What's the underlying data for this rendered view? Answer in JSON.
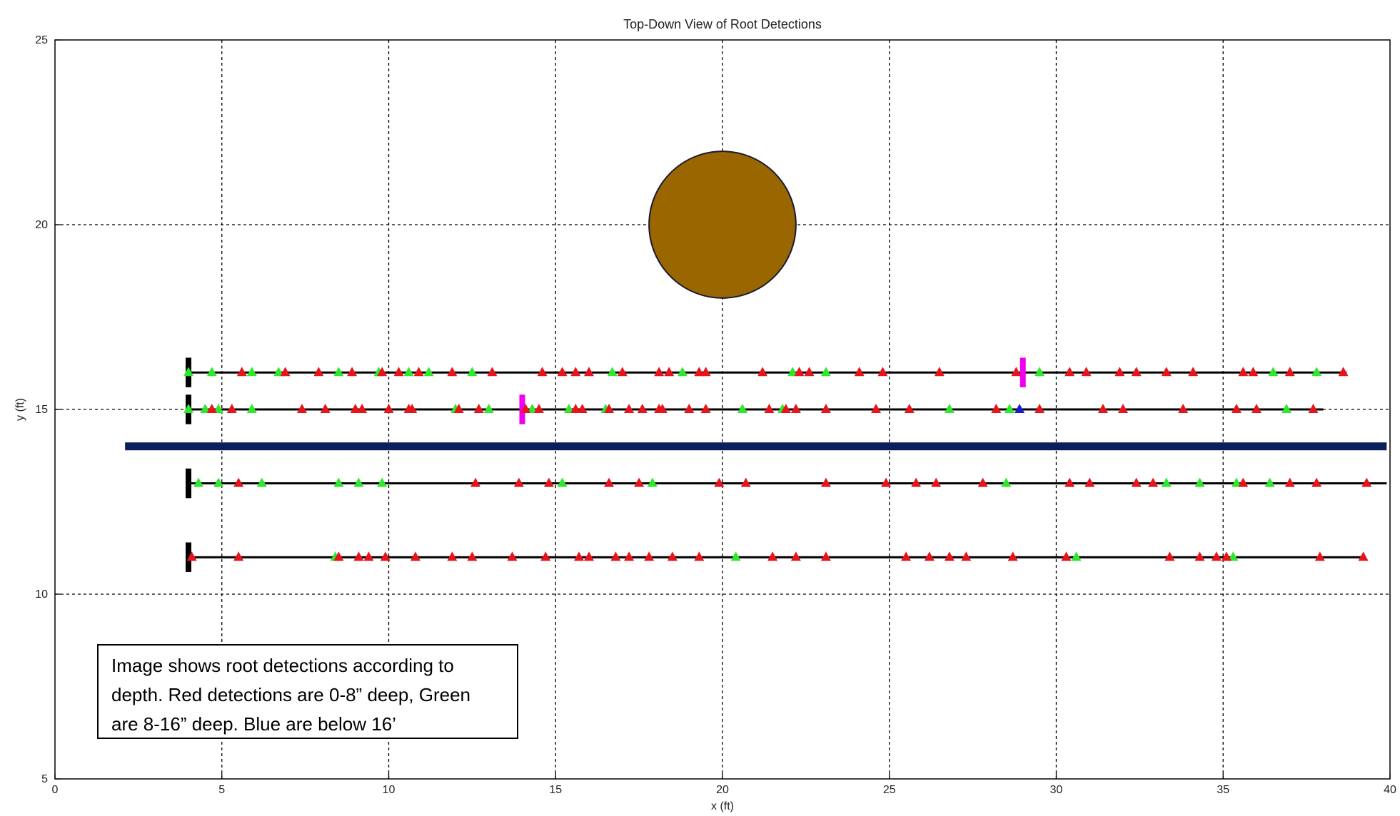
{
  "chart_data": {
    "type": "scatter",
    "title": "Top-Down View of Root Detections",
    "xlabel": "x (ft)",
    "ylabel": "y (ft)",
    "xlim": [
      0,
      40
    ],
    "ylim": [
      5,
      25
    ],
    "xticks": [
      0,
      5,
      10,
      15,
      20,
      25,
      30,
      35,
      40
    ],
    "yticks": [
      5,
      10,
      15,
      20,
      25
    ],
    "grid": true,
    "colors": {
      "red": "#e8141c",
      "green": "#2ee82e",
      "blue": "#1a1acc",
      "line": "#000000",
      "bar": "#0a1f5c",
      "marker_black": "#000000",
      "marker_magenta": "#ee00ee",
      "tree_fill": "#996600",
      "tree_edge": "#1a1a33"
    },
    "tree": {
      "cx": 20,
      "cy": 20,
      "r": 2.2
    },
    "barrier": {
      "x": [
        2.1,
        39.9
      ],
      "y": 14.0
    },
    "lines": [
      {
        "y": 16.0,
        "x": [
          4.0,
          38.7
        ],
        "red": [
          5.6,
          6.9,
          7.9,
          8.9,
          9.8,
          10.3,
          10.9,
          11.9,
          13.1,
          14.6,
          15.2,
          15.6,
          16.0,
          17.0,
          18.1,
          18.4,
          19.3,
          19.5,
          21.2,
          22.3,
          22.6,
          24.1,
          24.8,
          26.5,
          28.8,
          30.4,
          30.9,
          31.9,
          32.4,
          33.3,
          34.1,
          35.6,
          35.9,
          37.0,
          38.6
        ],
        "green": [
          4.0,
          4.7,
          5.9,
          6.7,
          8.5,
          9.7,
          10.6,
          11.2,
          12.5,
          16.7,
          18.8,
          22.1,
          23.1,
          29.5,
          36.5,
          37.8
        ],
        "blue": []
      },
      {
        "y": 15.0,
        "x": [
          4.0,
          38.0
        ],
        "red": [
          4.7,
          5.3,
          7.4,
          8.1,
          9.0,
          9.2,
          10.0,
          10.6,
          10.7,
          12.1,
          12.7,
          14.1,
          14.5,
          15.6,
          15.8,
          16.6,
          17.2,
          17.6,
          18.1,
          18.2,
          19.0,
          19.5,
          21.4,
          21.9,
          22.2,
          23.1,
          24.6,
          25.6,
          28.2,
          29.5,
          31.4,
          32.0,
          33.8,
          35.4,
          36.0,
          37.7
        ],
        "green": [
          4.0,
          4.5,
          4.9,
          5.9,
          12.0,
          13.0,
          14.3,
          15.4,
          16.5,
          20.6,
          21.8,
          26.8,
          28.6,
          36.9
        ],
        "blue": [
          28.9
        ]
      },
      {
        "y": 13.0,
        "x": [
          4.0,
          39.9
        ],
        "red": [
          5.5,
          12.6,
          13.9,
          14.8,
          16.6,
          17.5,
          19.9,
          20.7,
          23.1,
          24.9,
          25.8,
          26.4,
          27.8,
          30.4,
          31.0,
          32.4,
          32.9,
          35.6,
          37.0,
          37.8,
          39.3
        ],
        "green": [
          4.3,
          4.9,
          6.2,
          8.5,
          9.1,
          9.8,
          15.2,
          17.9,
          28.5,
          33.3,
          34.3,
          35.4,
          36.4
        ],
        "blue": []
      },
      {
        "y": 11.0,
        "x": [
          4.0,
          39.2
        ],
        "red": [
          4.1,
          5.5,
          8.5,
          9.1,
          9.4,
          9.9,
          10.8,
          11.9,
          12.5,
          13.7,
          14.7,
          15.7,
          16.0,
          16.8,
          17.2,
          17.8,
          18.5,
          19.3,
          21.5,
          22.2,
          23.1,
          25.5,
          26.2,
          26.8,
          27.3,
          28.7,
          30.3,
          33.4,
          34.3,
          34.8,
          35.1,
          37.9,
          39.2
        ],
        "green": [
          8.4,
          20.4,
          30.6,
          35.3
        ],
        "blue": []
      }
    ],
    "marks": [
      {
        "color": "marker_black",
        "x": 4.0,
        "y": 16.0
      },
      {
        "color": "marker_black",
        "x": 4.0,
        "y": 15.0
      },
      {
        "color": "marker_black",
        "x": 4.0,
        "y": 13.0
      },
      {
        "color": "marker_black",
        "x": 4.0,
        "y": 11.0
      },
      {
        "color": "marker_magenta",
        "x": 29.0,
        "y": 16.0
      },
      {
        "color": "marker_magenta",
        "x": 14.0,
        "y": 15.0
      }
    ]
  },
  "note": {
    "line1": "Image shows root detections according to",
    "line2": "depth. Red detections are 0-8” deep, Green",
    "line3": "are 8-16” deep. Blue are below 16’"
  }
}
